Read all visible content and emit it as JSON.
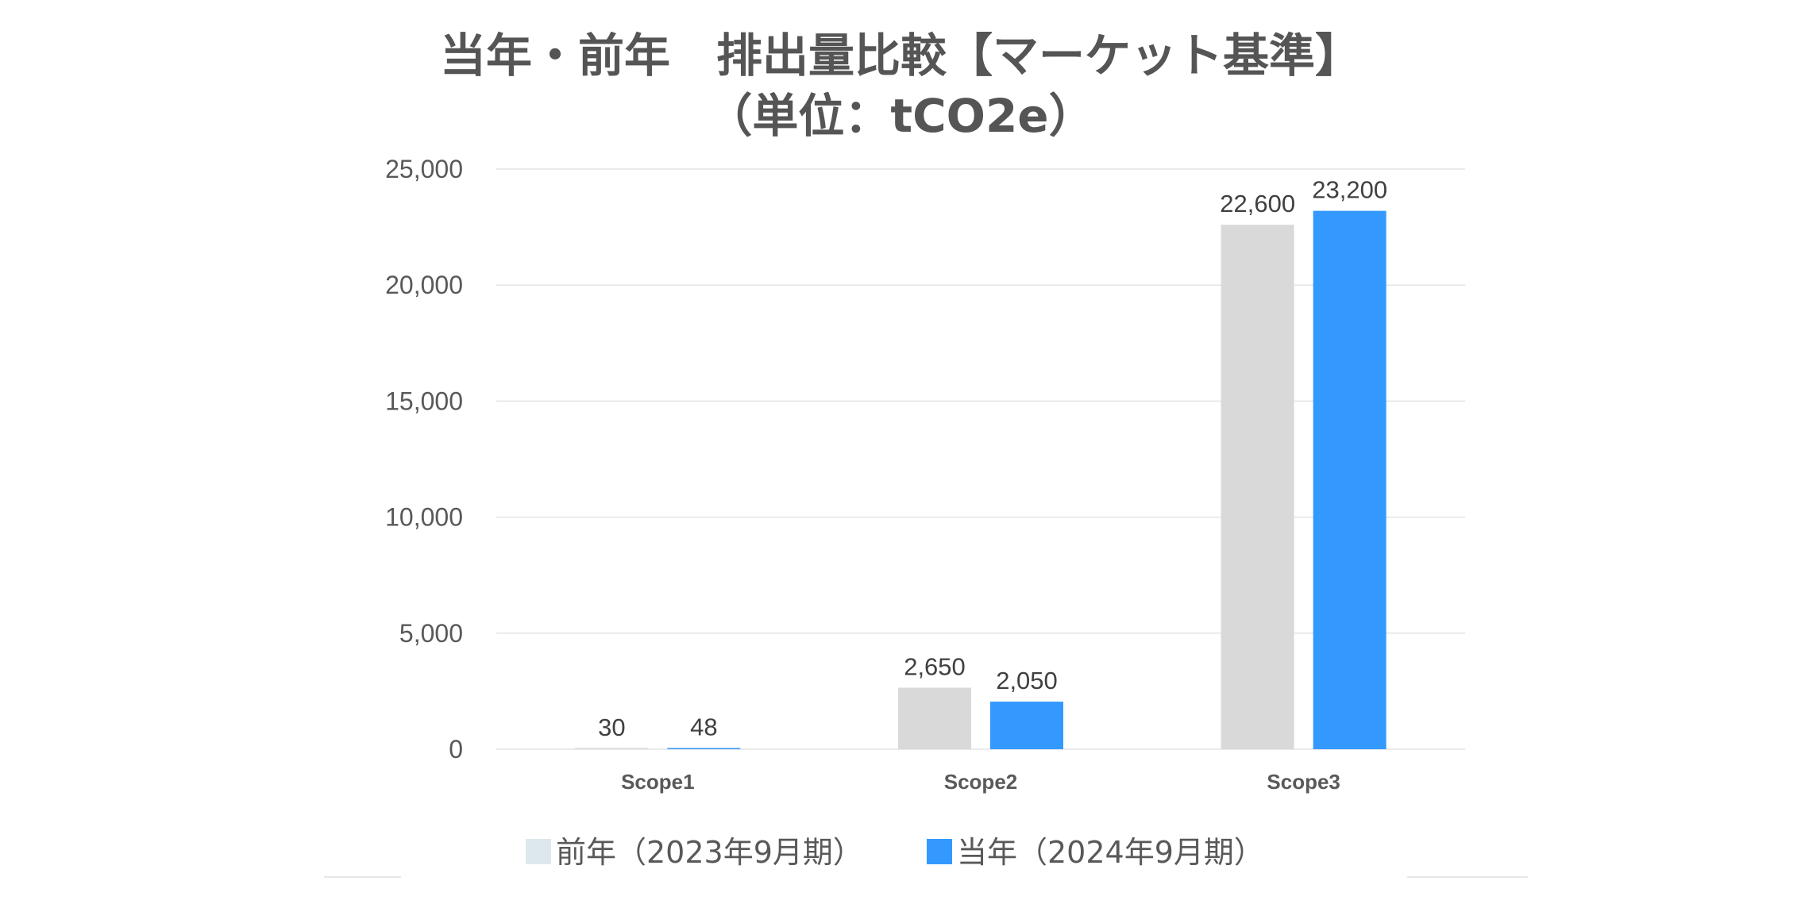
{
  "chart_data": {
    "type": "bar",
    "title_line1": "当年・前年　排出量比較【マーケット基準】",
    "title_line2": "（単位：tCO2e）",
    "categories": [
      "Scope1",
      "Scope2",
      "Scope3"
    ],
    "series": [
      {
        "name": "前年（2023年9月期）",
        "color": "#d9d9d9",
        "legend_color": "#dde8ec",
        "values": [
          30,
          2650,
          22600
        ]
      },
      {
        "name": "当年（2024年9月期）",
        "color": "#3399ff",
        "legend_color": "#3399ff",
        "values": [
          48,
          2050,
          23200
        ]
      }
    ],
    "ylim": [
      0,
      25000
    ],
    "yticks": [
      0,
      5000,
      10000,
      15000,
      20000,
      25000
    ],
    "ytick_labels": [
      "0",
      "5,000",
      "10,000",
      "15,000",
      "20,000",
      "25,000"
    ],
    "data_labels": [
      [
        "30",
        "2,650",
        "22,600"
      ],
      [
        "48",
        "2,050",
        "23,200"
      ]
    ],
    "grid": true,
    "legend_position": "bottom"
  }
}
